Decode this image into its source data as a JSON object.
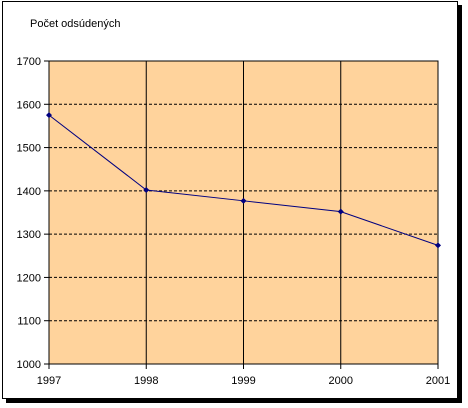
{
  "chart_data": {
    "type": "line",
    "ylabel": "Počet odsúdených",
    "categories": [
      "1997",
      "1998",
      "1999",
      "2000",
      "2001"
    ],
    "series": [
      {
        "values": [
          1575,
          1402,
          1377,
          1352,
          1274
        ]
      }
    ],
    "ylim": [
      1000,
      1700
    ],
    "yticks": [
      1000,
      1100,
      1200,
      1300,
      1400,
      1500,
      1600,
      1700
    ],
    "grid": {
      "horizontal": "dashed",
      "vertical": "solid"
    },
    "colors": {
      "plot_background": "#FFD39C",
      "line": "#000080",
      "marker": "#000080"
    }
  }
}
